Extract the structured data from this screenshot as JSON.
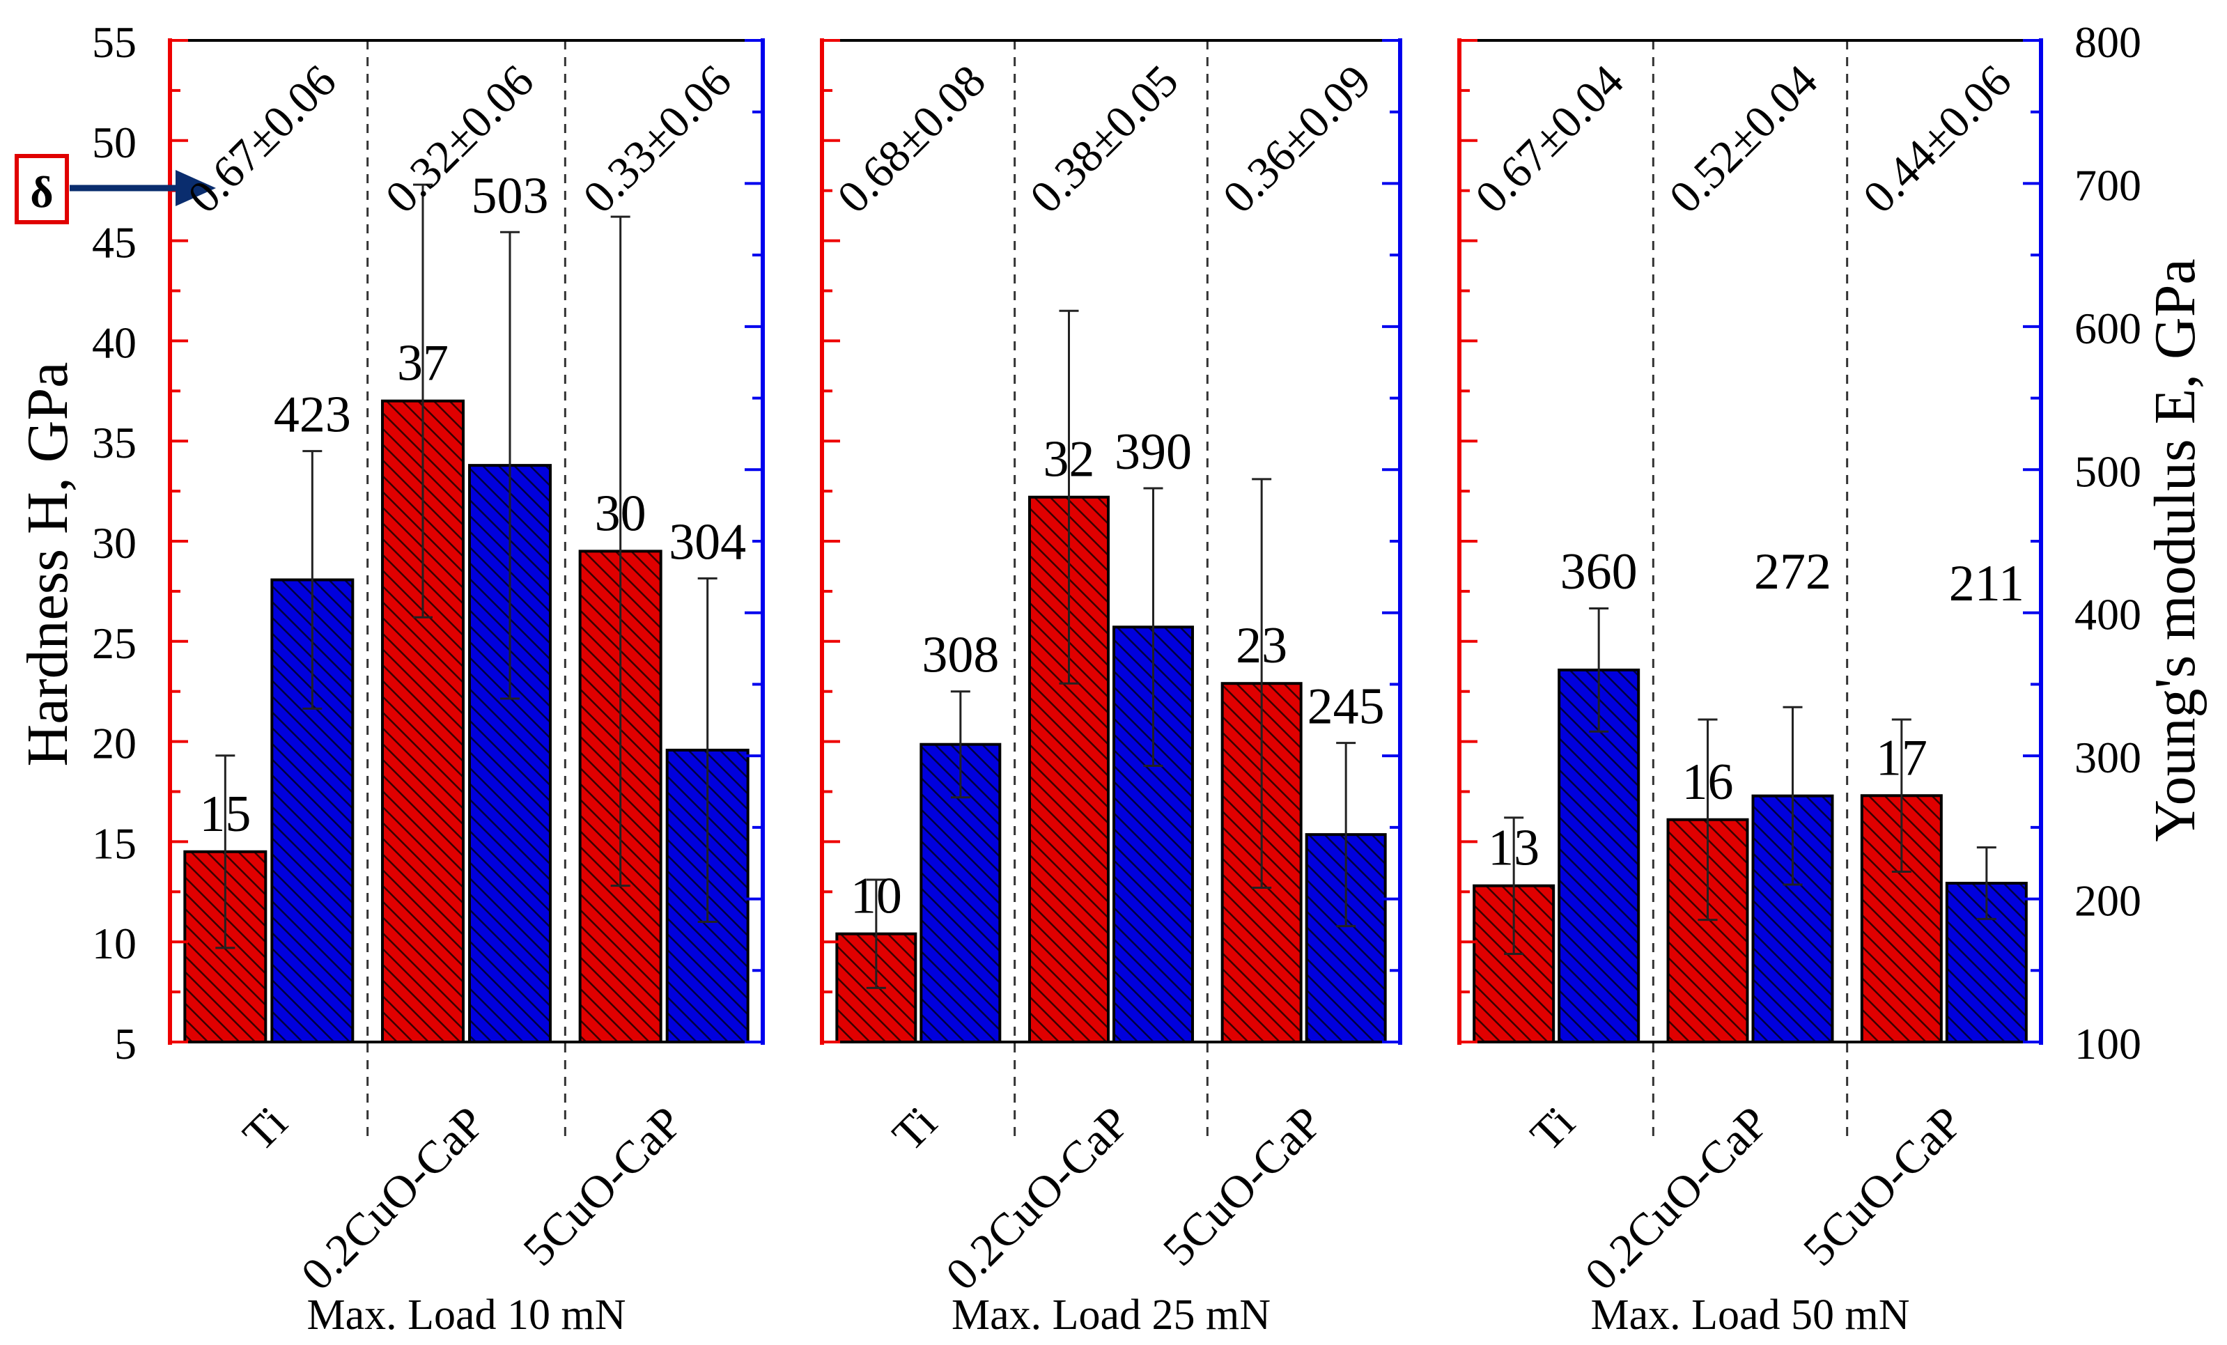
{
  "chart_data": {
    "type": "bar",
    "title": "",
    "ylabel_left": "Hardness H, GPa",
    "ylabel_right": "Young's modulus E, GPa",
    "ylim_left": [
      5,
      55
    ],
    "ylim_right": [
      100,
      800
    ],
    "yticks_left": [
      5,
      10,
      15,
      20,
      25,
      30,
      35,
      40,
      45,
      50,
      55
    ],
    "yticks_right": [
      100,
      200,
      300,
      400,
      500,
      600,
      700,
      800
    ],
    "categories": [
      "Ti",
      "0.2CuO-CaP",
      "5CuO-CaP"
    ],
    "delta_marker": "δ",
    "colors": {
      "hardness": "#e00000",
      "modulus": "#0000dd",
      "left_axis": "#ee0000",
      "right_axis": "#0000ee",
      "arrow": "#0a2d6e"
    },
    "series_names": [
      "Hardness H",
      "Young's modulus E"
    ],
    "panels": [
      {
        "xlabel": "Max. Load 10 mN",
        "groups": [
          {
            "category": "Ti",
            "hardness": 14.5,
            "hardness_label": "15",
            "hardness_err": 4.8,
            "modulus": 423,
            "modulus_label": "423",
            "modulus_err": 90,
            "delta": "0.67±0.06"
          },
          {
            "category": "0.2CuO-CaP",
            "hardness": 37,
            "hardness_label": "37",
            "hardness_err": 10.8,
            "modulus": 503,
            "modulus_label": "503",
            "modulus_err": 163,
            "delta": "0.32±0.06"
          },
          {
            "category": "5CuO-CaP",
            "hardness": 29.5,
            "hardness_label": "30",
            "hardness_err": 16.7,
            "modulus": 304,
            "modulus_label": "304",
            "modulus_err": 120,
            "delta": "0.33±0.06"
          }
        ]
      },
      {
        "xlabel": "Max. Load 25 mN",
        "groups": [
          {
            "category": "Ti",
            "hardness": 10.4,
            "hardness_label": "10",
            "hardness_err": 2.7,
            "modulus": 308,
            "modulus_label": "308",
            "modulus_err": 37,
            "delta": "0.68±0.08"
          },
          {
            "category": "0.2CuO-CaP",
            "hardness": 32.2,
            "hardness_label": "32",
            "hardness_err": 9.3,
            "modulus": 390,
            "modulus_label": "390",
            "modulus_err": 97,
            "delta": "0.38±0.05"
          },
          {
            "category": "5CuO-CaP",
            "hardness": 22.9,
            "hardness_label": "23",
            "hardness_err": 10.2,
            "modulus": 245,
            "modulus_label": "245",
            "modulus_err": 64,
            "delta": "0.36±0.09"
          }
        ]
      },
      {
        "xlabel": "Max. Load 50 mN",
        "groups": [
          {
            "category": "Ti",
            "hardness": 12.8,
            "hardness_label": "13",
            "hardness_err": 3.4,
            "modulus": 360,
            "modulus_label": "360",
            "modulus_err": 43,
            "delta": "0.67±0.04"
          },
          {
            "category": "0.2CuO-CaP",
            "hardness": 16.1,
            "hardness_label": "16",
            "hardness_err": 5.0,
            "modulus": 272,
            "modulus_label": "272",
            "modulus_err": 62,
            "delta": "0.52±0.04"
          },
          {
            "category": "5CuO-CaP",
            "hardness": 17.3,
            "hardness_label": "17",
            "hardness_err": 3.8,
            "modulus": 211,
            "modulus_label": "211",
            "modulus_err": 25,
            "delta": "0.44±0.06"
          }
        ]
      }
    ]
  }
}
